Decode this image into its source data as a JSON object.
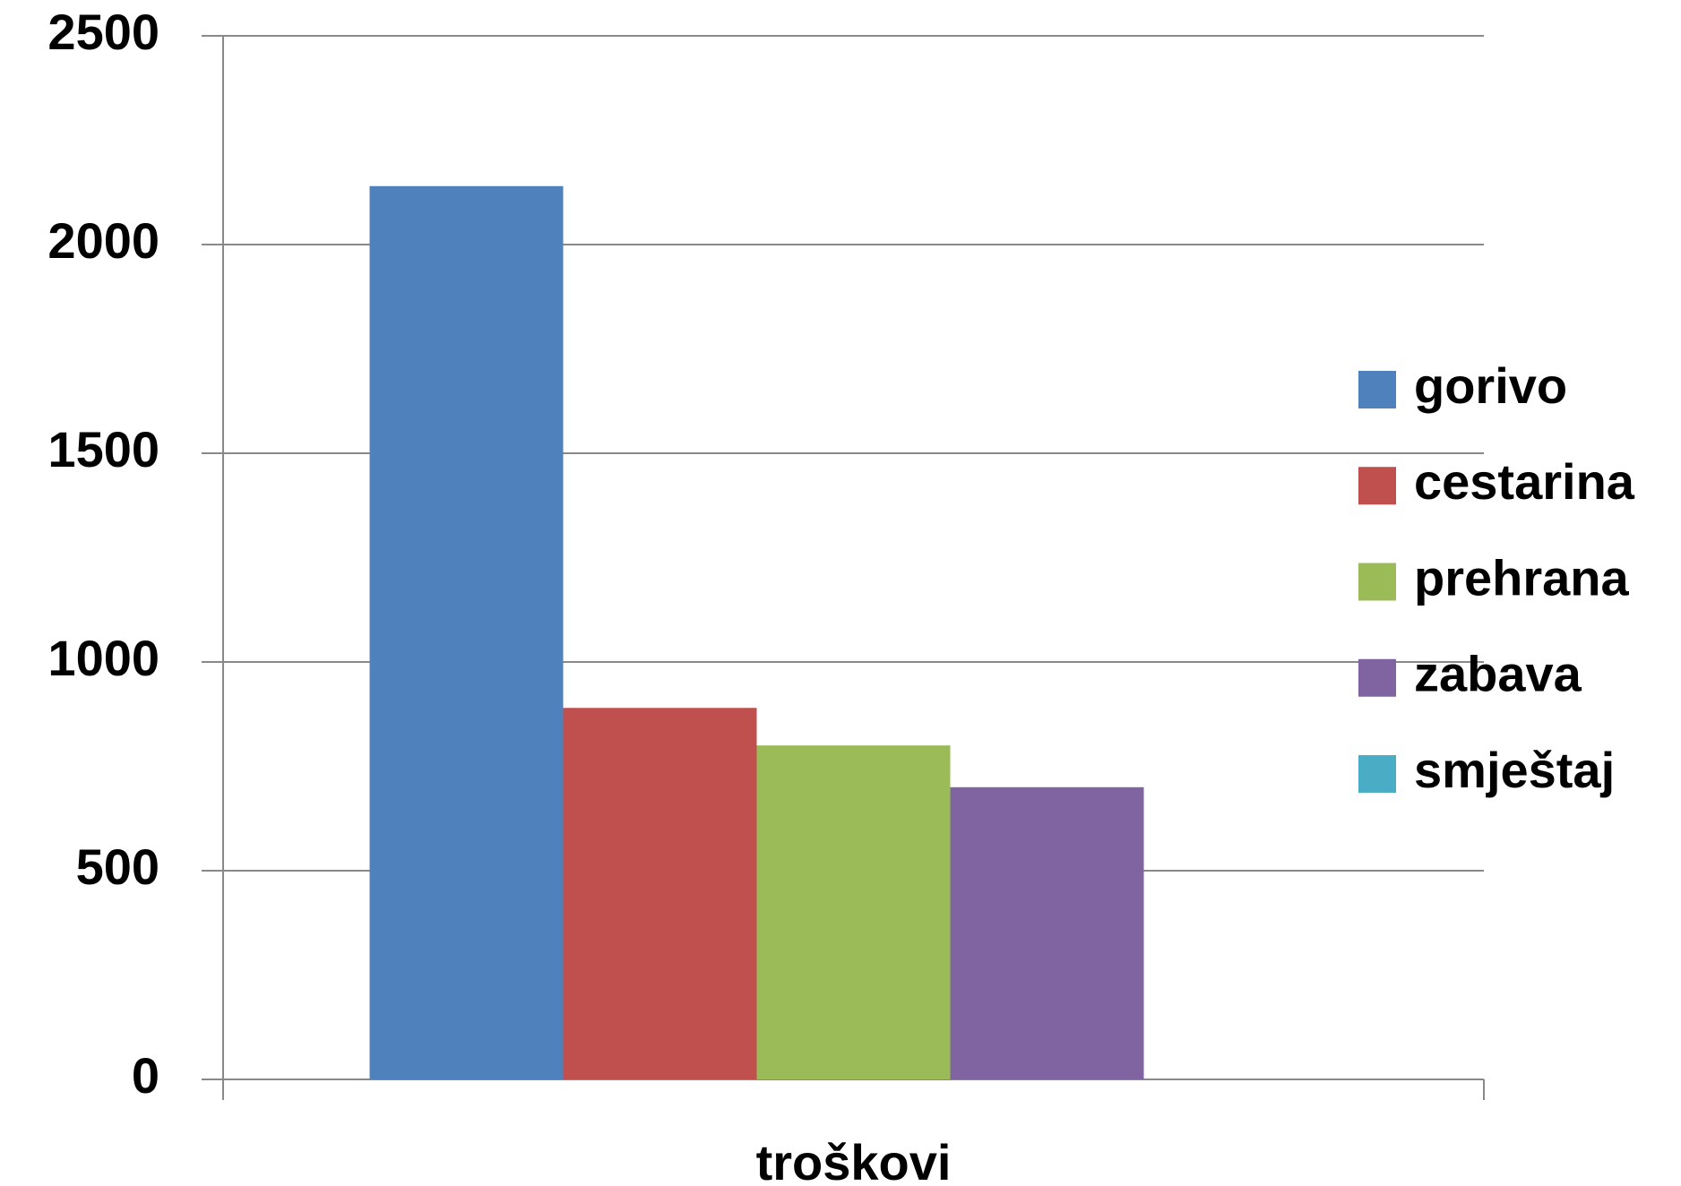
{
  "chart_data": {
    "type": "bar",
    "categories": [
      "troškovi"
    ],
    "series": [
      {
        "name": "gorivo",
        "color": "#4f81bd",
        "values": [
          2140
        ]
      },
      {
        "name": "cestarina",
        "color": "#c0504d",
        "values": [
          890
        ]
      },
      {
        "name": "prehrana",
        "color": "#9bbb59",
        "values": [
          800
        ]
      },
      {
        "name": "zabava",
        "color": "#8064a2",
        "values": [
          700
        ]
      },
      {
        "name": "smještaj",
        "color": "#4bacc6",
        "values": [
          0
        ]
      }
    ],
    "ylim": [
      0,
      2500
    ],
    "yticks": [
      0,
      500,
      1000,
      1500,
      2000,
      2500
    ],
    "grid": true,
    "legend": "right"
  }
}
